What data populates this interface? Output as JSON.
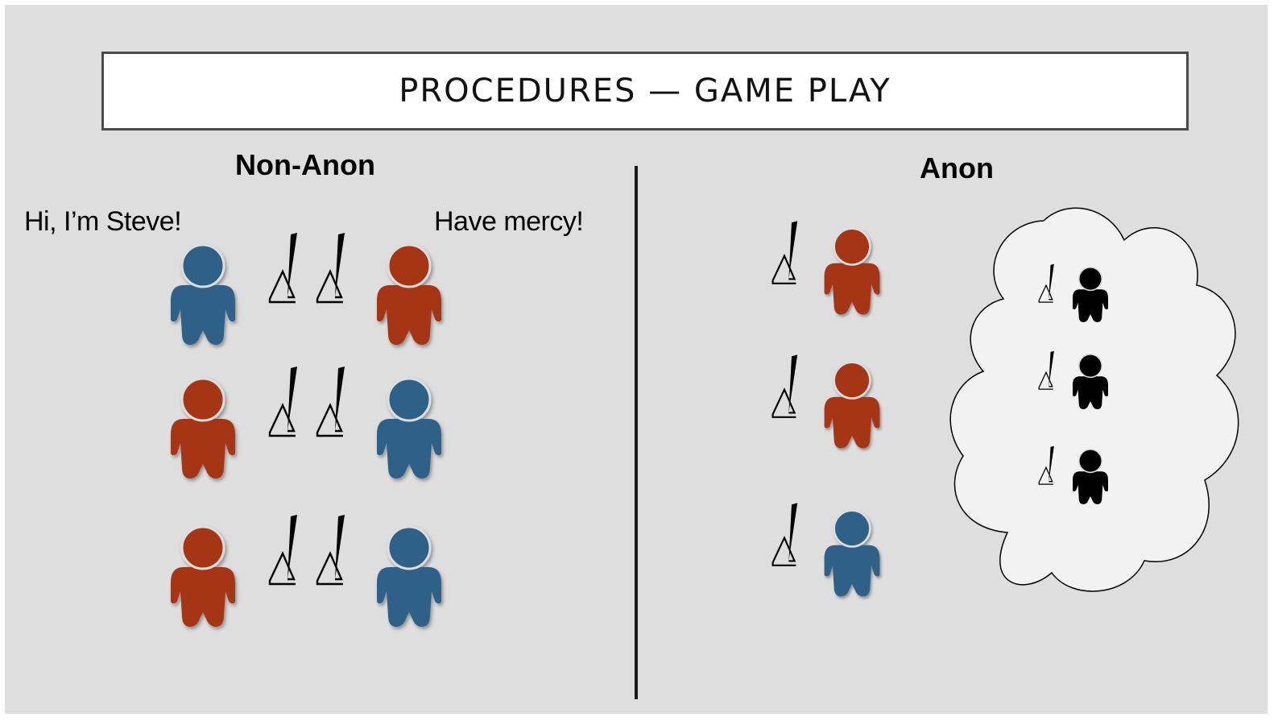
{
  "slide": {
    "title": "PROCEDURES — GAME PLAY"
  },
  "non_anon": {
    "heading": "Non-Anon",
    "speech_left": "Hi, I’m Steve!",
    "speech_right": "Have mercy!",
    "pairs": [
      {
        "left_player": "blue",
        "right_player": "red"
      },
      {
        "left_player": "red",
        "right_player": "blue"
      },
      {
        "left_player": "red",
        "right_player": "blue"
      }
    ]
  },
  "anon": {
    "heading": "Anon",
    "players": [
      "red",
      "red",
      "blue"
    ],
    "cloud_players": [
      "black",
      "black",
      "black"
    ]
  },
  "colors": {
    "background": "#dedede",
    "red": "#a63619",
    "blue": "#2f6188",
    "black": "#000000",
    "cloud_fill": "#f2f2f2",
    "divider": "#1a1a1a"
  },
  "icons": {
    "player": "person-icon",
    "monitor": "monitor-icon",
    "cloud": "cloud-shape"
  }
}
